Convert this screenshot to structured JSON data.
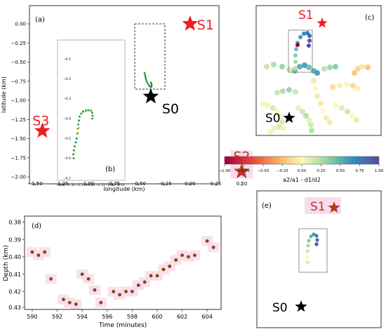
{
  "colors": {
    "star_red": "#ed1c24",
    "star_black": "#000000",
    "green_track": "#1f8c2d",
    "brown_point": "#7b4a12",
    "pink_halo": "#f9dbe9",
    "frame": "#333333",
    "inset_box": "#000000",
    "colormap_stops": [
      "#a0003c",
      "#e8413b",
      "#f9a556",
      "#fff9b7",
      "#8fd3a2",
      "#2e8fbd",
      "#5b4aa0"
    ]
  },
  "panel_a": {
    "label": "(a)",
    "stars": [
      {
        "id": "S1",
        "label": "S1",
        "x": 0.0,
        "y": 0.0,
        "color": "#ed1c24"
      },
      {
        "id": "S0",
        "label": "S0",
        "x": -0.38,
        "y": -0.95,
        "color": "#000000"
      },
      {
        "id": "S3",
        "label": "S3",
        "x": -1.43,
        "y": -1.4,
        "color": "#ed1c24"
      },
      {
        "id": "S2",
        "label": "S2",
        "x": 0.5,
        "y": -1.93,
        "color": "#b33b2a"
      }
    ],
    "track": [
      {
        "x": -0.23,
        "y": -0.6
      },
      {
        "x": -0.22,
        "y": -0.57
      },
      {
        "x": -0.215,
        "y": -0.54
      },
      {
        "x": -0.21,
        "y": -0.51
      },
      {
        "x": -0.2,
        "y": -0.48
      },
      {
        "x": -0.19,
        "y": -0.45
      },
      {
        "x": -0.175,
        "y": -0.42
      },
      {
        "x": -0.155,
        "y": -0.39
      },
      {
        "x": -0.135,
        "y": -0.365
      },
      {
        "x": -0.115,
        "y": -0.35
      },
      {
        "x": -0.1,
        "y": -0.355
      },
      {
        "x": -0.095,
        "y": -0.38
      },
      {
        "x": -0.1,
        "y": -0.41
      },
      {
        "x": -0.11,
        "y": -0.43
      }
    ],
    "x_tick_labels": [
      "−1.50",
      "−1.25",
      "−1.00",
      "−0.75",
      "−0.50",
      "−0.25",
      "0.00",
      "0.25",
      "0.50"
    ],
    "y_tick_labels": [
      "0.00",
      "−0.25",
      "−0.50",
      "−0.75",
      "−1.00",
      "−1.25",
      "−1.50",
      "−1.75",
      "−2.00"
    ],
    "x_label": "longitude (km)",
    "y_label": "latitude (km)"
  },
  "panel_b": {
    "label": "(b)",
    "x_tick_labels": [
      "−0.35",
      "−0.30",
      "−0.25",
      "−0.20",
      "−0.15",
      "−0.10",
      "−0.05"
    ],
    "y_tick_labels": [
      "−0.1",
      "−0.2",
      "−0.3",
      "−0.4",
      "−0.5",
      "−0.6",
      "−0.7"
    ],
    "track": [
      {
        "x": -0.283,
        "y": -0.6
      },
      {
        "x": -0.285,
        "y": -0.58
      },
      {
        "x": -0.282,
        "y": -0.56
      },
      {
        "x": -0.278,
        "y": -0.54
      },
      {
        "x": -0.272,
        "y": -0.52
      },
      {
        "x": -0.268,
        "y": -0.5
      },
      {
        "x": -0.265,
        "y": -0.475
      },
      {
        "x": -0.262,
        "y": -0.45
      },
      {
        "x": -0.26,
        "y": -0.43
      },
      {
        "x": -0.257,
        "y": -0.41
      },
      {
        "x": -0.253,
        "y": -0.39
      },
      {
        "x": -0.245,
        "y": -0.375
      },
      {
        "x": -0.235,
        "y": -0.365
      },
      {
        "x": -0.222,
        "y": -0.36
      },
      {
        "x": -0.21,
        "y": -0.358
      },
      {
        "x": -0.198,
        "y": -0.36
      },
      {
        "x": -0.19,
        "y": -0.37
      },
      {
        "x": -0.188,
        "y": -0.385
      },
      {
        "x": -0.19,
        "y": -0.4
      }
    ]
  },
  "panel_c": {
    "label": "(c)",
    "stars": [
      {
        "id": "S1",
        "label": "S1",
        "color": "#ed1c24"
      },
      {
        "id": "S0",
        "label": "S0",
        "color": "#000000"
      }
    ],
    "colorbar": {
      "ticks": [
        "−1.00",
        "−0.75",
        "−0.50",
        "−0.25",
        "0.00",
        "0.25",
        "0.50",
        "0.75",
        "1.00"
      ],
      "label": "a2/a1 - d1/d2",
      "range": [
        -1,
        1
      ]
    }
  },
  "panel_d": {
    "label": "(d)",
    "x_label": "Time (minutes)",
    "y_label": "Depth (km)",
    "x_tick_labels": [
      "590",
      "592",
      "594",
      "596",
      "598",
      "600",
      "602",
      "604"
    ],
    "y_tick_labels": [
      "0.38",
      "0.39",
      "0.40",
      "0.41",
      "0.42",
      "0.43"
    ]
  },
  "panel_e": {
    "label": "(e)",
    "stars": [
      {
        "id": "S1",
        "label": "S1",
        "color": "#b33b2a"
      },
      {
        "id": "S0",
        "label": "S0",
        "color": "#000000"
      }
    ]
  },
  "chart_data": {
    "type": "scatter",
    "xlabel": "Time (minutes)",
    "ylabel": "Depth (km)",
    "xlim": [
      589.5,
      605
    ],
    "ylim": [
      0.4335,
      0.3775
    ],
    "x": [
      590.0,
      590.5,
      591.0,
      591.5,
      592.5,
      593.0,
      593.5,
      594.0,
      594.5,
      595.0,
      595.5,
      596.5,
      597.0,
      597.5,
      598.0,
      598.5,
      599.0,
      599.5,
      600.0,
      600.5,
      601.0,
      601.5,
      602.0,
      602.5,
      603.0,
      604.0,
      604.5
    ],
    "y": [
      0.3985,
      0.4005,
      0.3985,
      0.4155,
      0.4285,
      0.4305,
      0.4315,
      0.4125,
      0.4155,
      0.4225,
      0.4305,
      0.4235,
      0.4255,
      0.4235,
      0.4235,
      0.4195,
      0.4175,
      0.4135,
      0.4135,
      0.4095,
      0.4075,
      0.4035,
      0.4005,
      0.4015,
      0.4005,
      0.3915,
      0.3955
    ]
  }
}
